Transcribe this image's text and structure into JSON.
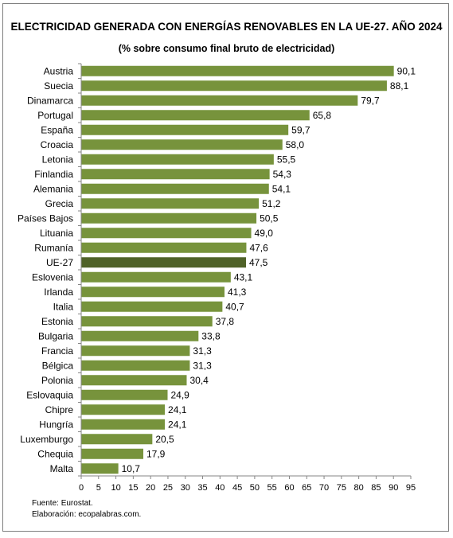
{
  "chart_data": {
    "type": "bar",
    "orientation": "horizontal",
    "title": "ELECTRICIDAD GENERADA CON ENERGÍAS RENOVABLES EN LA UE-27. AÑO 2024",
    "subtitle": "(% sobre consumo final bruto de electricidad)",
    "categories": [
      "Austria",
      "Suecia",
      "Dinamarca",
      "Portugal",
      "España",
      "Croacia",
      "Letonia",
      "Finlandia",
      "Alemania",
      "Grecia",
      "Países Bajos",
      "Lituania",
      "Rumanía",
      "UE-27",
      "Eslovenia",
      "Irlanda",
      "Italia",
      "Estonia",
      "Bulgaria",
      "Francia",
      "Bélgica",
      "Polonia",
      "Eslovaquia",
      "Chipre",
      "Hungría",
      "Luxemburgo",
      "Chequia",
      "Malta"
    ],
    "values": [
      90.1,
      88.1,
      79.7,
      65.8,
      59.7,
      58.0,
      55.5,
      54.3,
      54.1,
      51.2,
      50.5,
      49.0,
      47.6,
      47.5,
      43.1,
      41.3,
      40.7,
      37.8,
      33.8,
      31.3,
      31.3,
      30.4,
      24.9,
      24.1,
      24.1,
      20.5,
      17.9,
      10.7
    ],
    "value_labels": [
      "90,1",
      "88,1",
      "79,7",
      "65,8",
      "59,7",
      "58,0",
      "55,5",
      "54,3",
      "54,1",
      "51,2",
      "50,5",
      "49,0",
      "47,6",
      "47,5",
      "43,1",
      "41,3",
      "40,7",
      "37,8",
      "33,8",
      "31,3",
      "31,3",
      "30,4",
      "24,9",
      "24,1",
      "24,1",
      "20,5",
      "17,9",
      "10,7"
    ],
    "highlight_category": "UE-27",
    "xlim": [
      0,
      95
    ],
    "xticks": [
      0,
      5,
      10,
      15,
      20,
      25,
      30,
      35,
      40,
      45,
      50,
      55,
      60,
      65,
      70,
      75,
      80,
      85,
      90,
      95
    ],
    "grid": false,
    "legend": "none",
    "colors": {
      "bar": "#77933c",
      "highlight": "#4f6228"
    }
  },
  "footer": {
    "source": "Fuente: Eurostat.",
    "credit": "Elaboración: ecopalabras.com."
  }
}
